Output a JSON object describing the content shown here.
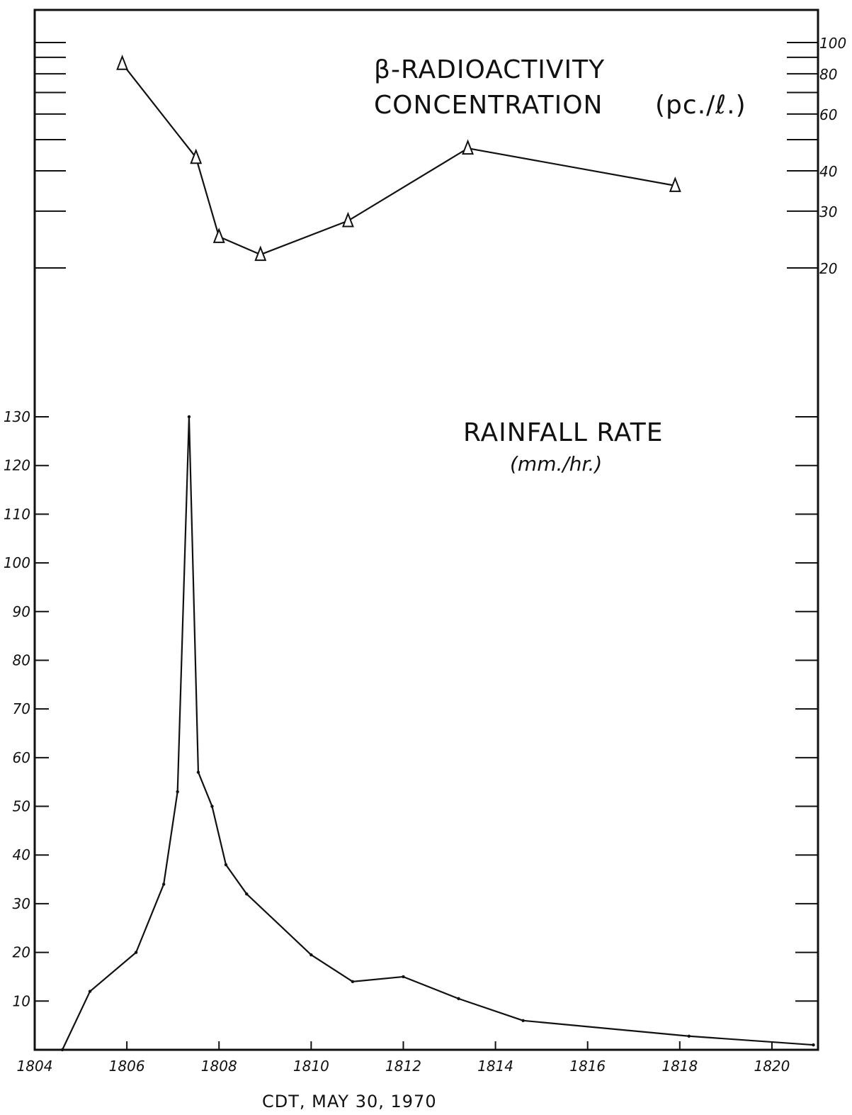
{
  "chart_data": [
    {
      "type": "line",
      "title": "β-RADIOACTIVITY",
      "subtitle": "CONCENTRATION",
      "unit": "(pc./ℓ.)",
      "marker": "triangle",
      "y_scale": "log",
      "ylim": [
        20,
        100
      ],
      "y_ticks": [
        "100",
        "80",
        "60",
        "40",
        "30",
        "20"
      ],
      "y_tick_values": [
        100,
        80,
        60,
        40,
        30,
        20
      ],
      "x": [
        1805.9,
        1807.5,
        1808.0,
        1808.9,
        1810.8,
        1813.4,
        1817.9
      ],
      "values": [
        86,
        44,
        25,
        22,
        28,
        47,
        36
      ],
      "line_color": "#111111"
    },
    {
      "type": "line",
      "title": "RAINFALL RATE",
      "unit": "(mm./hr.)",
      "ylim": [
        0,
        130
      ],
      "y_ticks": [
        "130",
        "120",
        "110",
        "100",
        "90",
        "80",
        "70",
        "60",
        "50",
        "40",
        "30",
        "20",
        "10"
      ],
      "y_tick_values": [
        130,
        120,
        110,
        100,
        90,
        80,
        70,
        60,
        50,
        40,
        30,
        20,
        10
      ],
      "x": [
        1804.6,
        1805.2,
        1806.2,
        1806.8,
        1807.1,
        1807.35,
        1807.55,
        1807.85,
        1808.15,
        1808.6,
        1810.0,
        1810.9,
        1812.0,
        1813.2,
        1814.6,
        1818.2,
        1820.9
      ],
      "values": [
        0,
        12,
        20,
        34,
        53,
        130,
        57,
        50,
        38,
        32,
        19.5,
        14,
        15,
        10.5,
        6,
        2.8,
        1
      ],
      "line_color": "#111111"
    }
  ],
  "x_axis": {
    "label": "CDT, MAY 30, 1970",
    "range": [
      1804,
      1821
    ],
    "ticks": [
      "1804",
      "1806",
      "1808",
      "1810",
      "1812",
      "1814",
      "1816",
      "1818",
      "1820"
    ],
    "tick_values": [
      1804,
      1806,
      1808,
      1810,
      1812,
      1814,
      1816,
      1818,
      1820
    ]
  }
}
